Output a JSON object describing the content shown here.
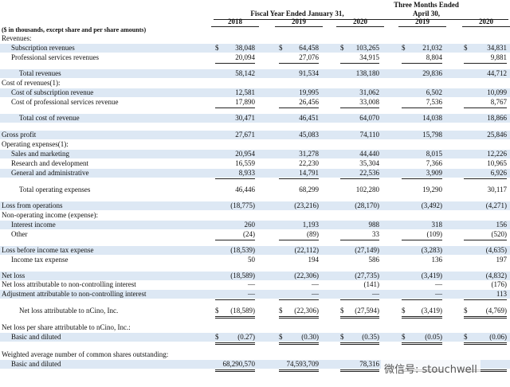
{
  "header": {
    "fiscal_group": "Fiscal Year Ended January 31,",
    "quarter_group_line1": "Three Months Ended",
    "quarter_group_line2": "April 30,",
    "years": [
      "2018",
      "2019",
      "2020",
      "2019",
      "2020"
    ]
  },
  "table": {
    "note": "($ in thousands, except share and per share amounts)",
    "rows": [
      {
        "label": "Revenues:"
      },
      {
        "label": "Subscription revenues",
        "currency": "$",
        "values": [
          "38,048",
          "64,458",
          "103,265",
          "21,032",
          "34,831"
        ]
      },
      {
        "label": "Professional services revenues",
        "values": [
          "20,094",
          "27,076",
          "34,915",
          "8,804",
          "9,881"
        ]
      },
      {
        "label": "Total revenues",
        "values": [
          "58,142",
          "91,534",
          "138,180",
          "29,836",
          "44,712"
        ]
      },
      {
        "label": "Cost of revenues(1):"
      },
      {
        "label": "Cost of subscription revenue",
        "values": [
          "12,581",
          "19,995",
          "31,062",
          "6,502",
          "10,099"
        ]
      },
      {
        "label": "Cost of professional services revenue",
        "values": [
          "17,890",
          "26,456",
          "33,008",
          "7,536",
          "8,767"
        ]
      },
      {
        "label": "Total cost of revenue",
        "values": [
          "30,471",
          "46,451",
          "64,070",
          "14,038",
          "18,866"
        ]
      },
      {
        "label": "Gross profit",
        "values": [
          "27,671",
          "45,083",
          "74,110",
          "15,798",
          "25,846"
        ]
      },
      {
        "label": "Operating expenses(1):"
      },
      {
        "label": "Sales and marketing",
        "values": [
          "20,954",
          "31,278",
          "44,440",
          "8,015",
          "12,226"
        ]
      },
      {
        "label": "Research and development",
        "values": [
          "16,559",
          "22,230",
          "35,304",
          "7,366",
          "10,965"
        ]
      },
      {
        "label": "General and administrative",
        "values": [
          "8,933",
          "14,791",
          "22,536",
          "3,909",
          "6,926"
        ]
      },
      {
        "label": "Total operating expenses",
        "values": [
          "46,446",
          "68,299",
          "102,280",
          "19,290",
          "30,117"
        ]
      },
      {
        "label": "Loss from operations",
        "values": [
          "(18,775)",
          "(23,216)",
          "(28,170)",
          "(3,492)",
          "(4,271)"
        ]
      },
      {
        "label": "Non-operating income (expense):"
      },
      {
        "label": "Interest income",
        "values": [
          "260",
          "1,193",
          "988",
          "318",
          "156"
        ]
      },
      {
        "label": "Other",
        "values": [
          "(24)",
          "(89)",
          "33",
          "(109)",
          "(520)"
        ]
      },
      {
        "label": "Loss before income tax expense",
        "values": [
          "(18,539)",
          "(22,112)",
          "(27,149)",
          "(3,283)",
          "(4,635)"
        ]
      },
      {
        "label": "Income tax expense",
        "values": [
          "50",
          "194",
          "586",
          "136",
          "197"
        ]
      },
      {
        "label": "Net loss",
        "values": [
          "(18,589)",
          "(22,306)",
          "(27,735)",
          "(3,419)",
          "(4,832)"
        ]
      },
      {
        "label": "Net loss attributable to non-controlling interest",
        "values": [
          "—",
          "—",
          "(141)",
          "—",
          "(176)"
        ]
      },
      {
        "label": "Adjustment attributable to non-controlling interest",
        "values": [
          "—",
          "—",
          "—",
          "—",
          "113"
        ]
      },
      {
        "label": "Net loss attributable to nCino, Inc.",
        "currency": "$",
        "values": [
          "(18,589)",
          "(22,306)",
          "(27,594)",
          "(3,419)",
          "(4,769)"
        ]
      },
      {
        "label": "Net loss per share attributable to nCino, Inc.:"
      },
      {
        "label": "Basic and diluted",
        "currency": "$",
        "values": [
          "(0.27)",
          "(0.30)",
          "(0.35)",
          "(0.05)",
          "(0.06)"
        ]
      },
      {
        "label": "Weighted average number of common shares outstanding:"
      },
      {
        "label": "Basic and diluted",
        "values": [
          "68,290,570",
          "74,593,709",
          "78,316",
          null,
          null
        ]
      }
    ]
  },
  "watermark": "微信号: stouchwell"
}
